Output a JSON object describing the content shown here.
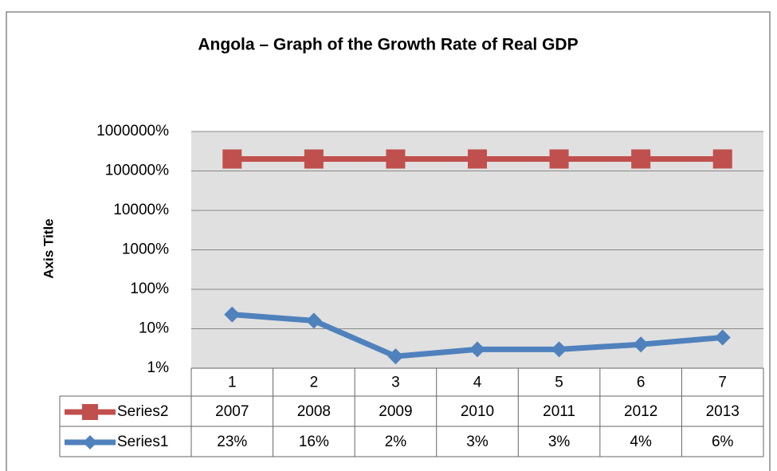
{
  "chart_data": {
    "type": "line",
    "title": "Angola – Graph of the Growth Rate of Real GDP",
    "y_label": "Axis Title",
    "categories": [
      "1",
      "2",
      "3",
      "4",
      "5",
      "6",
      "7"
    ],
    "series": [
      {
        "name": "Series2",
        "color": "#c0504d",
        "marker": "square",
        "values": [
          200700,
          200800,
          200900,
          201000,
          201100,
          201200,
          201300
        ],
        "value_labels": [
          "2007",
          "2008",
          "2009",
          "2010",
          "2011",
          "2012",
          "2013"
        ]
      },
      {
        "name": "Series1",
        "color": "#4f81bd",
        "marker": "diamond",
        "values": [
          23,
          16,
          2,
          3,
          3,
          4,
          6
        ],
        "value_labels": [
          "23%",
          "16%",
          "2%",
          "3%",
          "3%",
          "4%",
          "6%"
        ]
      }
    ],
    "log_scale": true,
    "ylim": [
      1,
      1000000
    ],
    "yticks": [
      {
        "value": 1,
        "label": "1%"
      },
      {
        "value": 10,
        "label": "10%"
      },
      {
        "value": 100,
        "label": "100%"
      },
      {
        "value": 1000,
        "label": "1000%"
      },
      {
        "value": 10000,
        "label": "10000%"
      },
      {
        "value": 100000,
        "label": "100000%"
      },
      {
        "value": 1000000,
        "label": "1000000%"
      }
    ],
    "grid": true,
    "data_table": true
  }
}
